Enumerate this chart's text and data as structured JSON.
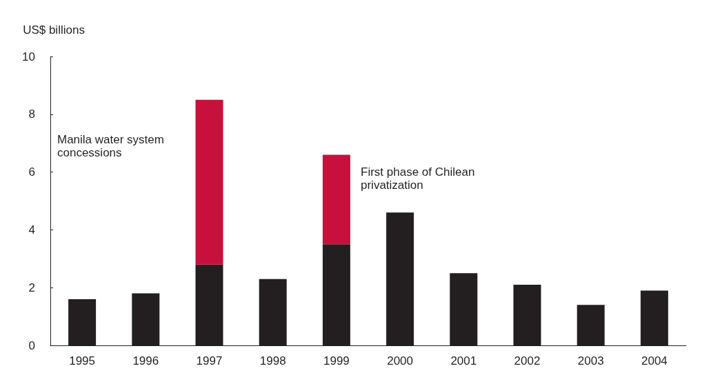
{
  "chart_data": {
    "type": "bar",
    "ylabel": "US$ billions",
    "categories": [
      "1995",
      "1996",
      "1997",
      "1998",
      "1999",
      "2000",
      "2001",
      "2002",
      "2003",
      "2004"
    ],
    "stacked": true,
    "series": [
      {
        "color": "#231f20",
        "values": [
          1.6,
          1.8,
          2.8,
          2.3,
          3.5,
          4.6,
          2.5,
          2.1,
          1.4,
          1.9
        ]
      },
      {
        "color": "#c8103c",
        "values": [
          null,
          null,
          5.7,
          null,
          3.1,
          null,
          null,
          null,
          null,
          null
        ]
      }
    ],
    "ylim": [
      0,
      10
    ],
    "yticks": [
      0,
      2,
      4,
      6,
      8,
      10
    ],
    "grid": false,
    "annotations": [
      "Manila water system\nconcessions",
      "First phase of Chilean\nprivatization"
    ]
  }
}
